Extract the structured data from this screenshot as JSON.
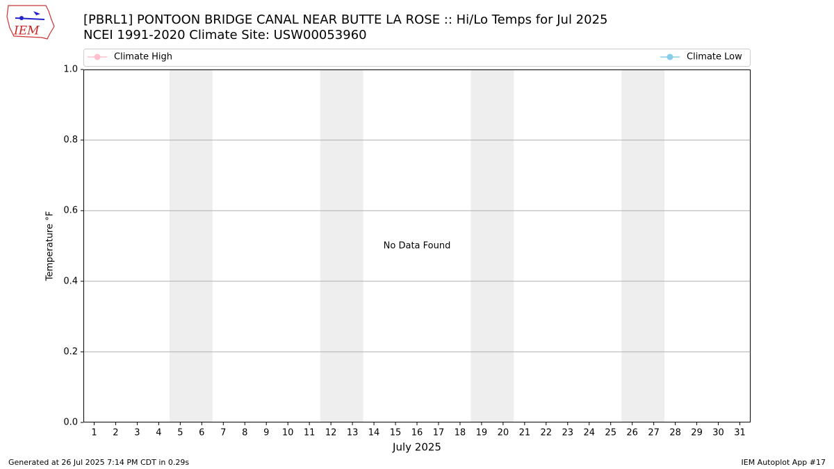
{
  "logo_text": "IEM",
  "footer_left": "Generated at 26 Jul 2025 7:14 PM CDT in 0.29s",
  "footer_right": "IEM Autoplot App #17",
  "chart_data": {
    "type": "line",
    "title": "[PBRL1] PONTOON BRIDGE CANAL NEAR BUTTE LA ROSE :: Hi/Lo Temps for Jul 2025",
    "subtitle": "NCEI 1991-2020 Climate Site: USW00053960",
    "x_label": "July 2025",
    "y_label": "Temperature °F",
    "annotation": "No Data Found",
    "x": [
      1,
      2,
      3,
      4,
      5,
      6,
      7,
      8,
      9,
      10,
      11,
      12,
      13,
      14,
      15,
      16,
      17,
      18,
      19,
      20,
      21,
      22,
      23,
      24,
      25,
      26,
      27,
      28,
      29,
      30,
      31
    ],
    "xlim": [
      0.5,
      31.5
    ],
    "ylim": [
      0,
      1
    ],
    "yticks": [
      {
        "value": 0,
        "label": "0.0"
      },
      {
        "value": 0.2,
        "label": "0.2"
      },
      {
        "value": 0.4,
        "label": "0.4"
      },
      {
        "value": 0.6,
        "label": "0.6"
      },
      {
        "value": 0.8,
        "label": "0.8"
      },
      {
        "value": 1,
        "label": "1.0"
      }
    ],
    "grid": true,
    "legend": "above",
    "shaded_spans": [
      [
        4.5,
        6.5
      ],
      [
        11.5,
        13.5
      ],
      [
        18.5,
        20.5
      ],
      [
        25.5,
        27.5
      ]
    ],
    "shade_color": "#eeeeee",
    "series": [
      {
        "name": "Climate High",
        "color": "#ffc0cb",
        "values": [
          null,
          null,
          null,
          null,
          null,
          null,
          null,
          null,
          null,
          null,
          null,
          null,
          null,
          null,
          null,
          null,
          null,
          null,
          null,
          null,
          null,
          null,
          null,
          null,
          null,
          null,
          null,
          null,
          null,
          null,
          null
        ]
      },
      {
        "name": "Climate Low",
        "color": "#87ceeb",
        "values": [
          null,
          null,
          null,
          null,
          null,
          null,
          null,
          null,
          null,
          null,
          null,
          null,
          null,
          null,
          null,
          null,
          null,
          null,
          null,
          null,
          null,
          null,
          null,
          null,
          null,
          null,
          null,
          null,
          null,
          null,
          null
        ]
      }
    ]
  }
}
